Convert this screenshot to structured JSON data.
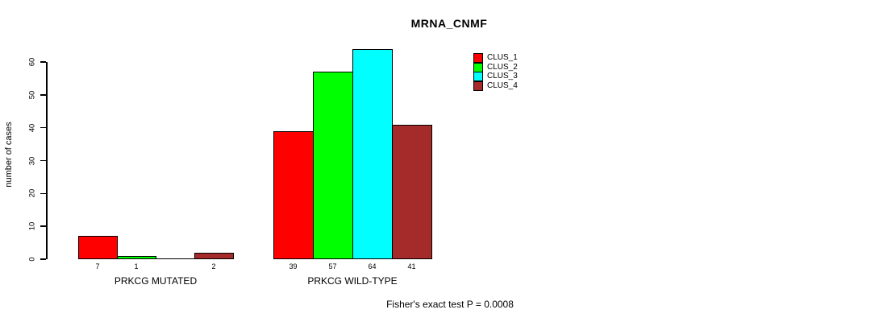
{
  "chart_data": {
    "type": "bar",
    "title": "MRNA_CNMF",
    "ylabel": "number of cases",
    "subtitle": "Fisher's exact test P = 0.0008",
    "ylim": [
      0,
      60
    ],
    "yticks": [
      0,
      10,
      20,
      30,
      40,
      50,
      60
    ],
    "grid": false,
    "legend_position": "top-right",
    "series": [
      {
        "name": "CLUS_1",
        "color": "#FF0000"
      },
      {
        "name": "CLUS_2",
        "color": "#00FF00"
      },
      {
        "name": "CLUS_3",
        "color": "#00FFFF"
      },
      {
        "name": "CLUS_4",
        "color": "#A52A2A"
      }
    ],
    "groups": [
      {
        "label": "PRKCG MUTATED",
        "values": [
          7,
          1,
          0,
          2
        ],
        "value_labels": [
          "7",
          "1",
          "",
          "2"
        ]
      },
      {
        "label": "PRKCG WILD-TYPE",
        "values": [
          39,
          57,
          64,
          41
        ],
        "value_labels": [
          "39",
          "57",
          "64",
          "41"
        ]
      }
    ]
  }
}
